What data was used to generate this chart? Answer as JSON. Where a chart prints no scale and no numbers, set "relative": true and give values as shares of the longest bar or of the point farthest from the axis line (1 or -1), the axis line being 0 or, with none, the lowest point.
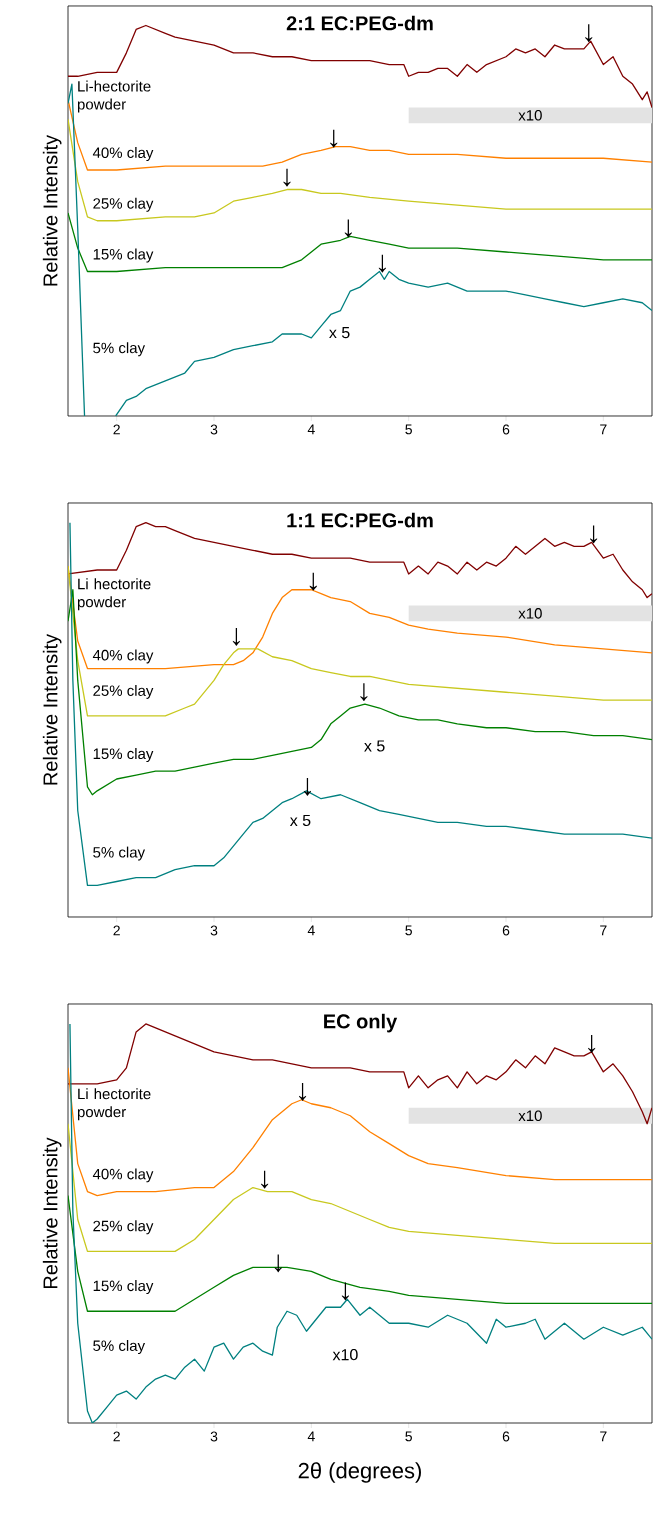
{
  "chart_data": [
    {
      "type": "line",
      "title": "2:1 EC:PEG-dm",
      "ylabel": "Relative Intensity",
      "relative": true,
      "xlim": [
        1.5,
        7.5
      ],
      "xticks": [
        2,
        3,
        4,
        5,
        6,
        7
      ],
      "series": [
        {
          "name": "Li-hectorite powder",
          "color": "#800000",
          "x": [
            1.5,
            1.6,
            1.8,
            2.0,
            2.1,
            2.2,
            2.3,
            2.4,
            2.5,
            2.6,
            2.8,
            3.0,
            3.2,
            3.4,
            3.6,
            3.8,
            4.0,
            4.2,
            4.4,
            4.6,
            4.8,
            4.95,
            5.0,
            5.1,
            5.2,
            5.3,
            5.4,
            5.5,
            5.6,
            5.7,
            5.8,
            5.9,
            6.0,
            6.1,
            6.2,
            6.3,
            6.4,
            6.5,
            6.6,
            6.7,
            6.8,
            6.87,
            7.0,
            7.1,
            7.2,
            7.3,
            7.4,
            7.45,
            7.5
          ],
          "values": [
            0.87,
            0.87,
            0.88,
            0.88,
            0.93,
            0.99,
            1.0,
            0.99,
            0.98,
            0.97,
            0.96,
            0.95,
            0.93,
            0.93,
            0.92,
            0.92,
            0.91,
            0.91,
            0.91,
            0.91,
            0.9,
            0.9,
            0.87,
            0.88,
            0.88,
            0.89,
            0.89,
            0.87,
            0.9,
            0.88,
            0.9,
            0.91,
            0.92,
            0.94,
            0.93,
            0.94,
            0.92,
            0.95,
            0.94,
            0.94,
            0.94,
            0.96,
            0.9,
            0.92,
            0.87,
            0.85,
            0.81,
            0.83,
            0.79
          ]
        },
        {
          "name": "40% clay",
          "color": "#ff8000",
          "x": [
            1.5,
            1.6,
            1.7,
            1.8,
            2.0,
            2.5,
            3.0,
            3.5,
            3.7,
            3.9,
            4.1,
            4.25,
            4.4,
            4.6,
            4.8,
            5.0,
            5.5,
            6.0,
            6.5,
            7.0,
            7.5
          ],
          "values": [
            0.81,
            0.7,
            0.63,
            0.63,
            0.63,
            0.64,
            0.64,
            0.64,
            0.65,
            0.67,
            0.68,
            0.69,
            0.69,
            0.68,
            0.68,
            0.67,
            0.67,
            0.66,
            0.66,
            0.66,
            0.65
          ]
        },
        {
          "name": "25% clay",
          "color": "#c8c81e",
          "x": [
            1.5,
            1.6,
            1.7,
            1.8,
            2.0,
            2.5,
            2.8,
            3.0,
            3.2,
            3.4,
            3.6,
            3.75,
            3.9,
            4.1,
            4.3,
            4.6,
            5.0,
            5.5,
            6.0,
            6.5,
            7.0,
            7.5
          ],
          "values": [
            0.76,
            0.6,
            0.51,
            0.5,
            0.5,
            0.51,
            0.51,
            0.52,
            0.55,
            0.56,
            0.57,
            0.58,
            0.58,
            0.57,
            0.57,
            0.56,
            0.55,
            0.54,
            0.53,
            0.53,
            0.53,
            0.53
          ]
        },
        {
          "name": "15% clay",
          "color": "#008000",
          "x": [
            1.5,
            1.6,
            1.7,
            1.8,
            2.0,
            2.5,
            3.0,
            3.5,
            3.7,
            3.9,
            4.1,
            4.3,
            4.4,
            4.6,
            4.8,
            5.0,
            5.5,
            6.0,
            6.5,
            7.0,
            7.5
          ],
          "values": [
            0.52,
            0.43,
            0.37,
            0.37,
            0.37,
            0.38,
            0.38,
            0.38,
            0.38,
            0.4,
            0.44,
            0.45,
            0.46,
            0.45,
            0.44,
            0.43,
            0.43,
            0.42,
            0.41,
            0.4,
            0.4
          ]
        },
        {
          "name": "5% clay",
          "color": "#008080",
          "x": [
            1.5,
            1.54,
            1.6,
            1.67,
            1.8,
            1.99,
            2.1,
            2.2,
            2.3,
            2.5,
            2.7,
            2.8,
            3.0,
            3.2,
            3.4,
            3.6,
            3.7,
            3.9,
            4.0,
            4.1,
            4.2,
            4.3,
            4.4,
            4.5,
            4.6,
            4.7,
            4.75,
            4.8,
            4.9,
            5.0,
            5.2,
            5.4,
            5.6,
            5.8,
            6.0,
            6.2,
            6.4,
            6.6,
            6.8,
            7.0,
            7.2,
            7.4,
            7.5
          ],
          "values": [
            0.8,
            0.85,
            0.48,
            0.0,
            null,
            0.0,
            0.04,
            0.05,
            0.07,
            0.09,
            0.11,
            0.14,
            0.15,
            0.17,
            0.18,
            0.19,
            0.21,
            0.21,
            0.2,
            0.23,
            0.26,
            0.27,
            0.32,
            0.33,
            0.35,
            0.37,
            0.35,
            0.37,
            0.35,
            0.34,
            0.33,
            0.34,
            0.32,
            0.32,
            0.32,
            0.31,
            0.3,
            0.29,
            0.28,
            0.29,
            0.3,
            0.29,
            0.27
          ]
        }
      ],
      "bands": [
        {
          "axis": "x",
          "from": 5,
          "to": 7.5,
          "label": "x10"
        }
      ],
      "annotations": [
        "x 5",
        {
          "text": "↓",
          "x": 6.85,
          "y": 0.96
        },
        {
          "text": "↓",
          "x": 4.23,
          "y": 0.69
        },
        {
          "text": "↓",
          "x": 3.75,
          "y": 0.59
        },
        {
          "text": "↓",
          "x": 4.38,
          "y": 0.46
        },
        {
          "text": "↓",
          "x": 4.73,
          "y": 0.37
        }
      ]
    },
    {
      "type": "line",
      "title": "1:1 EC:PEG-dm",
      "ylabel": "Relative Intensity",
      "relative": true,
      "xlim": [
        1.5,
        7.5
      ],
      "xticks": [
        2,
        3,
        4,
        5,
        6,
        7
      ],
      "series": [
        {
          "name": "Li hectorite powder",
          "color": "#800000",
          "x": [
            1.5,
            1.8,
            2.0,
            2.1,
            2.2,
            2.3,
            2.4,
            2.5,
            2.6,
            2.8,
            3.0,
            3.2,
            3.4,
            3.6,
            3.8,
            4.0,
            4.2,
            4.4,
            4.6,
            4.8,
            4.95,
            5.0,
            5.1,
            5.2,
            5.3,
            5.4,
            5.5,
            5.6,
            5.7,
            5.8,
            5.9,
            6.0,
            6.1,
            6.2,
            6.3,
            6.4,
            6.5,
            6.6,
            6.7,
            6.8,
            6.88,
            7.0,
            7.1,
            7.2,
            7.3,
            7.4,
            7.45,
            7.5
          ],
          "values": [
            0.87,
            0.88,
            0.88,
            0.93,
            0.99,
            1.0,
            0.99,
            0.99,
            0.98,
            0.96,
            0.95,
            0.94,
            0.93,
            0.92,
            0.92,
            0.91,
            0.91,
            0.91,
            0.9,
            0.9,
            0.9,
            0.87,
            0.89,
            0.87,
            0.9,
            0.89,
            0.87,
            0.9,
            0.88,
            0.9,
            0.89,
            0.91,
            0.94,
            0.92,
            0.94,
            0.96,
            0.94,
            0.95,
            0.94,
            0.94,
            0.95,
            0.91,
            0.92,
            0.88,
            0.85,
            0.83,
            0.81,
            0.82
          ]
        },
        {
          "name": "40% clay",
          "color": "#ff8000",
          "x": [
            1.5,
            1.6,
            1.7,
            1.8,
            2.0,
            2.5,
            3.0,
            3.2,
            3.3,
            3.4,
            3.5,
            3.6,
            3.7,
            3.8,
            3.9,
            4.0,
            4.1,
            4.2,
            4.4,
            4.6,
            4.8,
            5.0,
            5.2,
            5.5,
            6.0,
            6.5,
            7.0,
            7.5
          ],
          "values": [
            0.89,
            0.7,
            0.63,
            0.63,
            0.63,
            0.63,
            0.64,
            0.64,
            0.65,
            0.67,
            0.71,
            0.77,
            0.81,
            0.83,
            0.83,
            0.83,
            0.82,
            0.81,
            0.8,
            0.77,
            0.76,
            0.74,
            0.73,
            0.72,
            0.71,
            0.69,
            0.68,
            0.67
          ]
        },
        {
          "name": "25% clay",
          "color": "#c8c81e",
          "x": [
            1.5,
            1.6,
            1.7,
            1.8,
            2.0,
            2.5,
            2.7,
            2.8,
            3.0,
            3.1,
            3.2,
            3.25,
            3.35,
            3.45,
            3.6,
            3.8,
            4.0,
            4.2,
            4.4,
            4.6,
            5.0,
            5.5,
            6.0,
            6.5,
            7.0,
            7.5
          ],
          "values": [
            0.89,
            0.65,
            0.51,
            0.51,
            0.51,
            0.51,
            0.53,
            0.54,
            0.6,
            0.64,
            0.67,
            0.68,
            0.68,
            0.68,
            0.66,
            0.65,
            0.63,
            0.62,
            0.61,
            0.61,
            0.59,
            0.58,
            0.57,
            0.56,
            0.55,
            0.55
          ]
        },
        {
          "name": "15% clay",
          "color": "#008000",
          "x": [
            1.5,
            1.55,
            1.6,
            1.7,
            1.75,
            1.8,
            2.0,
            2.2,
            2.4,
            2.6,
            2.8,
            3.0,
            3.2,
            3.4,
            3.6,
            3.8,
            4.0,
            4.1,
            4.2,
            4.3,
            4.4,
            4.55,
            4.7,
            4.9,
            5.1,
            5.3,
            5.5,
            5.8,
            6.0,
            6.3,
            6.6,
            6.9,
            7.2,
            7.5
          ],
          "values": [
            0.75,
            0.83,
            0.6,
            0.33,
            0.31,
            0.32,
            0.35,
            0.36,
            0.37,
            0.37,
            0.38,
            0.39,
            0.4,
            0.4,
            0.41,
            0.42,
            0.43,
            0.45,
            0.49,
            0.51,
            0.53,
            0.54,
            0.53,
            0.51,
            0.5,
            0.5,
            0.49,
            0.48,
            0.48,
            0.47,
            0.47,
            0.46,
            0.46,
            0.45
          ]
        },
        {
          "name": "5% clay",
          "color": "#008080",
          "x": [
            1.52,
            1.55,
            1.6,
            1.7,
            1.8,
            2.0,
            2.2,
            2.4,
            2.6,
            2.8,
            3.0,
            3.1,
            3.2,
            3.3,
            3.4,
            3.5,
            3.6,
            3.7,
            3.8,
            3.95,
            4.1,
            4.3,
            4.5,
            4.7,
            4.9,
            5.1,
            5.3,
            5.5,
            5.8,
            6.0,
            6.3,
            6.6,
            6.9,
            7.2,
            7.5
          ],
          "values": [
            1.0,
            0.6,
            0.27,
            0.08,
            0.08,
            0.09,
            0.1,
            0.1,
            0.12,
            0.13,
            0.13,
            0.15,
            0.18,
            0.21,
            0.24,
            0.25,
            0.27,
            0.29,
            0.3,
            0.32,
            0.3,
            0.31,
            0.29,
            0.27,
            0.26,
            0.25,
            0.24,
            0.24,
            0.23,
            0.23,
            0.22,
            0.21,
            0.21,
            0.21,
            0.2
          ]
        }
      ],
      "bands": [
        {
          "axis": "x",
          "from": 5,
          "to": 7.5,
          "label": "x10"
        }
      ],
      "annotations": [
        "x 5",
        "x 5",
        {
          "text": "↓",
          "x": 6.9,
          "y": 0.95
        },
        {
          "text": "↓",
          "x": 4.02,
          "y": 0.83
        },
        {
          "text": "↓",
          "x": 3.23,
          "y": 0.69
        },
        {
          "text": "↓",
          "x": 4.54,
          "y": 0.55
        },
        {
          "text": "↓",
          "x": 3.96,
          "y": 0.31
        }
      ]
    },
    {
      "type": "line",
      "title": "EC only",
      "xlabel": "2θ (degrees)",
      "ylabel": "Relative Intensity",
      "relative": true,
      "xlim": [
        1.5,
        7.5
      ],
      "xticks": [
        2,
        3,
        4,
        5,
        6,
        7
      ],
      "series": [
        {
          "name": "Li hectorite powder",
          "color": "#800000",
          "x": [
            1.5,
            1.8,
            2.0,
            2.1,
            2.2,
            2.3,
            2.4,
            2.5,
            2.6,
            2.8,
            3.0,
            3.2,
            3.4,
            3.6,
            3.8,
            4.0,
            4.2,
            4.4,
            4.6,
            4.8,
            4.95,
            5.0,
            5.1,
            5.2,
            5.3,
            5.4,
            5.5,
            5.6,
            5.7,
            5.8,
            5.9,
            6.0,
            6.1,
            6.2,
            6.3,
            6.4,
            6.5,
            6.6,
            6.7,
            6.8,
            6.88,
            7.0,
            7.1,
            7.2,
            7.3,
            7.4,
            7.45,
            7.5
          ],
          "values": [
            0.85,
            0.85,
            0.86,
            0.89,
            0.98,
            1.0,
            0.99,
            0.98,
            0.97,
            0.95,
            0.93,
            0.92,
            0.91,
            0.91,
            0.9,
            0.89,
            0.89,
            0.89,
            0.88,
            0.88,
            0.88,
            0.84,
            0.87,
            0.84,
            0.86,
            0.87,
            0.84,
            0.88,
            0.85,
            0.87,
            0.86,
            0.88,
            0.91,
            0.89,
            0.92,
            0.9,
            0.94,
            0.93,
            0.92,
            0.92,
            0.93,
            0.88,
            0.9,
            0.87,
            0.83,
            0.78,
            0.75,
            0.79
          ]
        },
        {
          "name": "40% clay",
          "color": "#ff8000",
          "x": [
            1.5,
            1.6,
            1.7,
            1.8,
            2.0,
            2.4,
            2.8,
            3.0,
            3.2,
            3.4,
            3.6,
            3.8,
            3.9,
            4.0,
            4.2,
            4.4,
            4.6,
            4.8,
            5.0,
            5.2,
            5.5,
            6.0,
            6.5,
            7.0,
            7.5
          ],
          "values": [
            0.89,
            0.65,
            0.58,
            0.57,
            0.58,
            0.58,
            0.59,
            0.59,
            0.63,
            0.69,
            0.76,
            0.8,
            0.81,
            0.8,
            0.79,
            0.77,
            0.73,
            0.7,
            0.67,
            0.65,
            0.64,
            0.62,
            0.61,
            0.61,
            0.61
          ]
        },
        {
          "name": "25% clay",
          "color": "#c8c81e",
          "x": [
            1.5,
            1.6,
            1.7,
            1.8,
            2.0,
            2.4,
            2.6,
            2.8,
            3.0,
            3.2,
            3.4,
            3.55,
            3.8,
            4.0,
            4.2,
            4.4,
            4.6,
            4.8,
            5.0,
            5.5,
            6.0,
            6.5,
            7.0,
            7.5
          ],
          "values": [
            0.75,
            0.51,
            0.43,
            0.43,
            0.43,
            0.43,
            0.43,
            0.46,
            0.51,
            0.56,
            0.59,
            0.58,
            0.58,
            0.56,
            0.55,
            0.53,
            0.51,
            0.49,
            0.48,
            0.47,
            0.46,
            0.45,
            0.45,
            0.45
          ]
        },
        {
          "name": "15% clay",
          "color": "#008000",
          "x": [
            1.5,
            1.6,
            1.7,
            1.8,
            2.0,
            2.4,
            2.6,
            2.8,
            3.0,
            3.2,
            3.4,
            3.6,
            3.75,
            4.0,
            4.2,
            4.5,
            4.8,
            5.0,
            5.5,
            6.0,
            6.5,
            7.0,
            7.5
          ],
          "values": [
            0.57,
            0.38,
            0.28,
            0.28,
            0.28,
            0.28,
            0.28,
            0.31,
            0.34,
            0.37,
            0.39,
            0.39,
            0.39,
            0.38,
            0.36,
            0.34,
            0.33,
            0.32,
            0.31,
            0.3,
            0.3,
            0.3,
            0.3
          ]
        },
        {
          "name": "5% clay",
          "color": "#008080",
          "x": [
            1.52,
            1.55,
            1.6,
            1.7,
            1.75,
            1.8,
            1.9,
            2.0,
            2.1,
            2.2,
            2.3,
            2.4,
            2.5,
            2.6,
            2.7,
            2.8,
            2.9,
            3.0,
            3.1,
            3.2,
            3.3,
            3.4,
            3.5,
            3.6,
            3.65,
            3.75,
            3.85,
            3.95,
            4.05,
            4.15,
            4.3,
            4.37,
            4.5,
            4.6,
            4.8,
            5.0,
            5.2,
            5.4,
            5.6,
            5.8,
            5.9,
            6.0,
            6.2,
            6.3,
            6.4,
            6.6,
            6.8,
            7.0,
            7.2,
            7.4,
            7.5
          ],
          "values": [
            1.0,
            0.53,
            0.25,
            0.03,
            0.0,
            0.01,
            0.04,
            0.07,
            0.08,
            0.06,
            0.09,
            0.11,
            0.12,
            0.11,
            0.14,
            0.16,
            0.13,
            0.19,
            0.2,
            0.16,
            0.19,
            0.2,
            0.18,
            0.17,
            0.24,
            0.28,
            0.27,
            0.23,
            0.26,
            0.29,
            0.29,
            0.31,
            0.27,
            0.29,
            0.25,
            0.25,
            0.24,
            0.27,
            0.25,
            0.2,
            0.26,
            0.24,
            0.25,
            0.26,
            0.21,
            0.25,
            0.21,
            0.24,
            0.22,
            0.24,
            0.21
          ]
        }
      ],
      "bands": [
        {
          "axis": "x",
          "from": 5,
          "to": 7.5,
          "label": "x10"
        }
      ],
      "annotations": [
        "x10",
        {
          "text": "↓",
          "x": 6.88,
          "y": 0.93
        },
        {
          "text": "↓",
          "x": 3.91,
          "y": 0.81
        },
        {
          "text": "↓",
          "x": 3.52,
          "y": 0.59
        },
        {
          "text": "↓",
          "x": 3.66,
          "y": 0.38
        },
        {
          "text": "↓",
          "x": 4.35,
          "y": 0.31
        }
      ]
    }
  ]
}
